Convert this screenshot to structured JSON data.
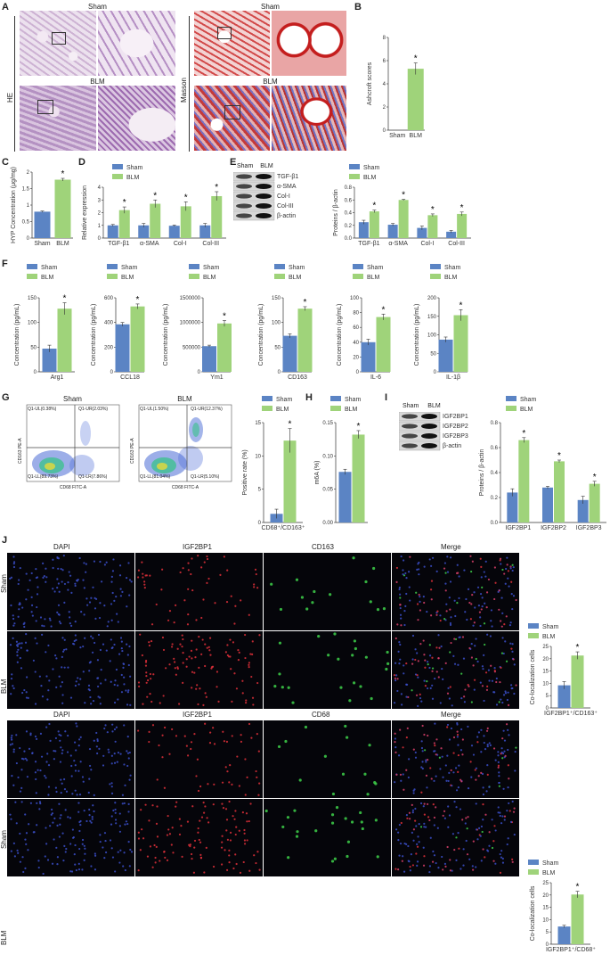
{
  "labels": {
    "A": "A",
    "B": "B",
    "C": "C",
    "D": "D",
    "E": "E",
    "F": "F",
    "G": "G",
    "H": "H",
    "I": "I",
    "J": "J"
  },
  "panelA": {
    "sham": "Sham",
    "blm": "BLM",
    "he": "HE",
    "masson": "Masson"
  },
  "panelE": {
    "sham": "Sham",
    "blm": "BLM",
    "bands": [
      "TGF-β1",
      "α-SMA",
      "Col-I",
      "Col-III",
      "β-actin"
    ]
  },
  "panelG": {
    "sham": "Sham",
    "blm": "BLM",
    "xaxis": "CD68 FITC-A",
    "yaxis": "CD163 PE-A",
    "sham_quads": [
      "Q1-UL(0.38%)",
      "Q1-UR(2.03%)",
      "Q1-LL(89.73%)",
      "Q1-LR(7.86%)"
    ],
    "blm_quads": [
      "Q1-UL(1.50%)",
      "Q1-UR(12.37%)",
      "Q1-LL(81.04%)",
      "Q1-LR(5.10%)"
    ]
  },
  "panelI": {
    "sham": "Sham",
    "blm": "BLM",
    "bands": [
      "IGF2BP1",
      "IGF2BP2",
      "IGF2BP3",
      "β-actin"
    ]
  },
  "panelJ": {
    "top_cols": [
      "DAPI",
      "IGF2BP1",
      "CD163",
      "Merge"
    ],
    "bot_cols": [
      "DAPI",
      "IGF2BP1",
      "CD68",
      "Merge"
    ],
    "rows": [
      "Sham",
      "BLM"
    ]
  },
  "colors": {
    "sham": "#5b84c4",
    "blm": "#9fd37a"
  },
  "chart_data": [
    {
      "id": "B",
      "type": "bar",
      "categories": [
        "Sham",
        "BLM"
      ],
      "values": [
        0,
        5.3
      ],
      "errors": [
        0,
        0.5
      ],
      "ylabel": "Ashcroft scores",
      "ylim": [
        0,
        8
      ],
      "ticks": [
        0,
        2,
        4,
        6,
        8
      ],
      "sig": [
        1
      ],
      "legend": false
    },
    {
      "id": "C",
      "type": "bar",
      "categories": [
        "Sham",
        "BLM"
      ],
      "values": [
        0.8,
        1.77
      ],
      "errors": [
        0.02,
        0.04
      ],
      "ylabel": "HYP Concentration (μg/mg)",
      "ylim": [
        0,
        2.0
      ],
      "ticks": [
        0.0,
        0.5,
        1.0,
        1.5,
        2.0
      ],
      "sig": [
        1
      ],
      "legend": false
    },
    {
      "id": "D",
      "type": "bar",
      "categories": [
        "TGF-β1",
        "α-SMA",
        "Col-I",
        "Col-III"
      ],
      "series": [
        {
          "name": "Sham",
          "values": [
            1.0,
            1.0,
            0.97,
            1.0
          ],
          "errors": [
            0.07,
            0.15,
            0.05,
            0.15
          ]
        },
        {
          "name": "BLM",
          "values": [
            2.2,
            2.7,
            2.5,
            3.3
          ],
          "errors": [
            0.25,
            0.3,
            0.35,
            0.35
          ]
        }
      ],
      "ylabel": "Relative expression",
      "ylim": [
        0,
        4
      ],
      "ticks": [
        0,
        1,
        2,
        3,
        4
      ],
      "sig": [
        0,
        1,
        2,
        3
      ],
      "legend": true
    },
    {
      "id": "E",
      "type": "bar",
      "categories": [
        "TGF-β1",
        "α-SMA",
        "Col-I",
        "Col-III"
      ],
      "series": [
        {
          "name": "Sham",
          "values": [
            0.25,
            0.21,
            0.16,
            0.1
          ],
          "errors": [
            0.03,
            0.02,
            0.03,
            0.02
          ]
        },
        {
          "name": "BLM",
          "values": [
            0.42,
            0.6,
            0.36,
            0.38
          ],
          "errors": [
            0.02,
            0.01,
            0.02,
            0.03
          ]
        }
      ],
      "ylabel": "Proteins / β-actin",
      "ylim": [
        0,
        0.8
      ],
      "ticks": [
        0.0,
        0.2,
        0.4,
        0.6,
        0.8
      ],
      "sig": [
        0,
        1,
        2,
        3
      ],
      "legend": true
    },
    {
      "id": "F1",
      "type": "bar",
      "categories": [
        "Arg1"
      ],
      "series": [
        {
          "name": "Sham",
          "values": [
            47
          ],
          "errors": [
            7
          ]
        },
        {
          "name": "BLM",
          "values": [
            128
          ],
          "errors": [
            12
          ]
        }
      ],
      "ylabel": "Concentration (pg/mL)",
      "ylim": [
        0,
        150
      ],
      "ticks": [
        0,
        50,
        100,
        150
      ],
      "sig": [
        0
      ],
      "legend": true
    },
    {
      "id": "F2",
      "type": "bar",
      "categories": [
        "CCL18"
      ],
      "series": [
        {
          "name": "Sham",
          "values": [
            385
          ],
          "errors": [
            15
          ]
        },
        {
          "name": "BLM",
          "values": [
            530
          ],
          "errors": [
            20
          ]
        }
      ],
      "ylabel": "Concentration (pg/mL)",
      "ylim": [
        0,
        600
      ],
      "ticks": [
        0,
        200,
        400,
        600
      ],
      "sig": [
        0
      ],
      "legend": true
    },
    {
      "id": "F3",
      "type": "bar",
      "categories": [
        "Ym1"
      ],
      "series": [
        {
          "name": "Sham",
          "values": [
            520000
          ],
          "errors": [
            20000
          ]
        },
        {
          "name": "BLM",
          "values": [
            980000
          ],
          "errors": [
            60000
          ]
        }
      ],
      "ylabel": "Concentration (pg/mL)",
      "ylim": [
        0,
        1500000
      ],
      "ticks": [
        0,
        500000,
        1000000,
        1500000
      ],
      "sig": [
        0
      ],
      "legend": true
    },
    {
      "id": "F4",
      "type": "bar",
      "categories": [
        "CD163"
      ],
      "series": [
        {
          "name": "Sham",
          "values": [
            73
          ],
          "errors": [
            4
          ]
        },
        {
          "name": "BLM",
          "values": [
            128
          ],
          "errors": [
            4
          ]
        }
      ],
      "ylabel": "Concentration (pg/mL)",
      "ylim": [
        0,
        150
      ],
      "ticks": [
        0,
        50,
        100,
        150
      ],
      "sig": [
        0
      ],
      "legend": true
    },
    {
      "id": "F5",
      "type": "bar",
      "categories": [
        "IL-6"
      ],
      "series": [
        {
          "name": "Sham",
          "values": [
            40
          ],
          "errors": [
            4
          ]
        },
        {
          "name": "BLM",
          "values": [
            74
          ],
          "errors": [
            4
          ]
        }
      ],
      "ylabel": "Concentration (pg/mL)",
      "ylim": [
        0,
        100
      ],
      "ticks": [
        0,
        20,
        40,
        60,
        80,
        100
      ],
      "sig": [
        0
      ],
      "legend": true
    },
    {
      "id": "F6",
      "type": "bar",
      "categories": [
        "IL-1β"
      ],
      "series": [
        {
          "name": "Sham",
          "values": [
            87
          ],
          "errors": [
            7
          ]
        },
        {
          "name": "BLM",
          "values": [
            153
          ],
          "errors": [
            15
          ]
        }
      ],
      "ylabel": "Concentration (pg/mL)",
      "ylim": [
        0,
        200
      ],
      "ticks": [
        0,
        50,
        100,
        150,
        200
      ],
      "sig": [
        0
      ],
      "legend": true
    },
    {
      "id": "G",
      "type": "bar",
      "categories": [
        "CD68⁺/CD163⁺"
      ],
      "series": [
        {
          "name": "Sham",
          "values": [
            1.3
          ],
          "errors": [
            0.7
          ]
        },
        {
          "name": "BLM",
          "values": [
            12.3
          ],
          "errors": [
            1.8
          ]
        }
      ],
      "ylabel": "Positive rate (%)",
      "ylim": [
        0,
        15
      ],
      "ticks": [
        0,
        5,
        10,
        15
      ],
      "sig": [
        0
      ],
      "legend": true
    },
    {
      "id": "H",
      "type": "bar",
      "categories": [
        ""
      ],
      "series": [
        {
          "name": "Sham",
          "values": [
            0.076
          ],
          "errors": [
            0.004
          ]
        },
        {
          "name": "BLM",
          "values": [
            0.132
          ],
          "errors": [
            0.006
          ]
        }
      ],
      "ylabel": "m6A (%)",
      "ylim": [
        0,
        0.15
      ],
      "ticks": [
        0.0,
        0.05,
        0.1,
        0.15
      ],
      "sig": [
        0
      ],
      "legend": true
    },
    {
      "id": "I",
      "type": "bar",
      "categories": [
        "IGF2BP1",
        "IGF2BP2",
        "IGF2BP3"
      ],
      "series": [
        {
          "name": "Sham",
          "values": [
            0.24,
            0.28,
            0.18
          ],
          "errors": [
            0.03,
            0.01,
            0.03
          ]
        },
        {
          "name": "BLM",
          "values": [
            0.66,
            0.49,
            0.31
          ],
          "errors": [
            0.02,
            0.01,
            0.02
          ]
        }
      ],
      "ylabel": "Proteins / β-actin",
      "ylim": [
        0,
        0.8
      ],
      "ticks": [
        0.0,
        0.2,
        0.4,
        0.6,
        0.8
      ],
      "sig": [
        0,
        1,
        2
      ],
      "legend": true
    },
    {
      "id": "J1",
      "type": "bar",
      "categories": [
        "IGF2BP1⁺/CD163⁺"
      ],
      "series": [
        {
          "name": "Sham",
          "values": [
            9.2
          ],
          "errors": [
            1.5
          ]
        },
        {
          "name": "BLM",
          "values": [
            21.3
          ],
          "errors": [
            1.5
          ]
        }
      ],
      "ylabel": "Co-localization cells",
      "ylim": [
        0,
        25
      ],
      "ticks": [
        0,
        5,
        10,
        15,
        20,
        25
      ],
      "sig": [
        0
      ],
      "legend": true
    },
    {
      "id": "J2",
      "type": "bar",
      "categories": [
        "IGF2BP1⁺/CD68⁺"
      ],
      "series": [
        {
          "name": "Sham",
          "values": [
            7.2
          ],
          "errors": [
            0.5
          ]
        },
        {
          "name": "BLM",
          "values": [
            20.2
          ],
          "errors": [
            1.3
          ]
        }
      ],
      "ylabel": "Co-localization cells",
      "ylim": [
        0,
        25
      ],
      "ticks": [
        0,
        5,
        10,
        15,
        20,
        25
      ],
      "sig": [
        0
      ],
      "legend": true
    }
  ]
}
